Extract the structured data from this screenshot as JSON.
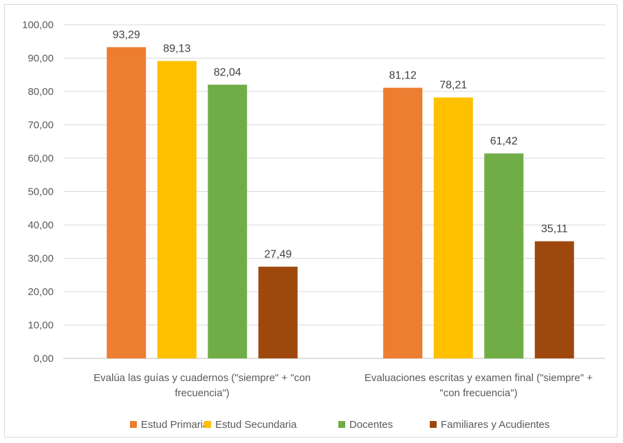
{
  "chart_data": {
    "type": "bar",
    "categories": [
      [
        "Evalúa las guías y cuadernos (\"siempre\" + \"con",
        "frecuencia\")"
      ],
      [
        "Evaluaciones escritas y examen final (\"siempre\" +",
        "\"con frecuencia\")"
      ]
    ],
    "series": [
      {
        "name": "Estud Primaria",
        "color": "#ED7D31",
        "values": [
          93.29,
          81.12
        ]
      },
      {
        "name": "Estud Secundaria",
        "color": "#FFC000",
        "values": [
          89.13,
          78.21
        ]
      },
      {
        "name": "Docentes",
        "color": "#70AD47",
        "values": [
          82.04,
          61.42
        ]
      },
      {
        "name": "Familiares y Acudientes",
        "color": "#9E480E",
        "values": [
          27.49,
          35.11
        ]
      }
    ],
    "ylim": [
      0,
      100
    ],
    "yticks": [
      0,
      10,
      20,
      30,
      40,
      50,
      60,
      70,
      80,
      90,
      100
    ],
    "number_format": "decimal-comma-2",
    "grid": true,
    "legend": "bottom",
    "title": "",
    "xlabel": "",
    "ylabel": ""
  }
}
